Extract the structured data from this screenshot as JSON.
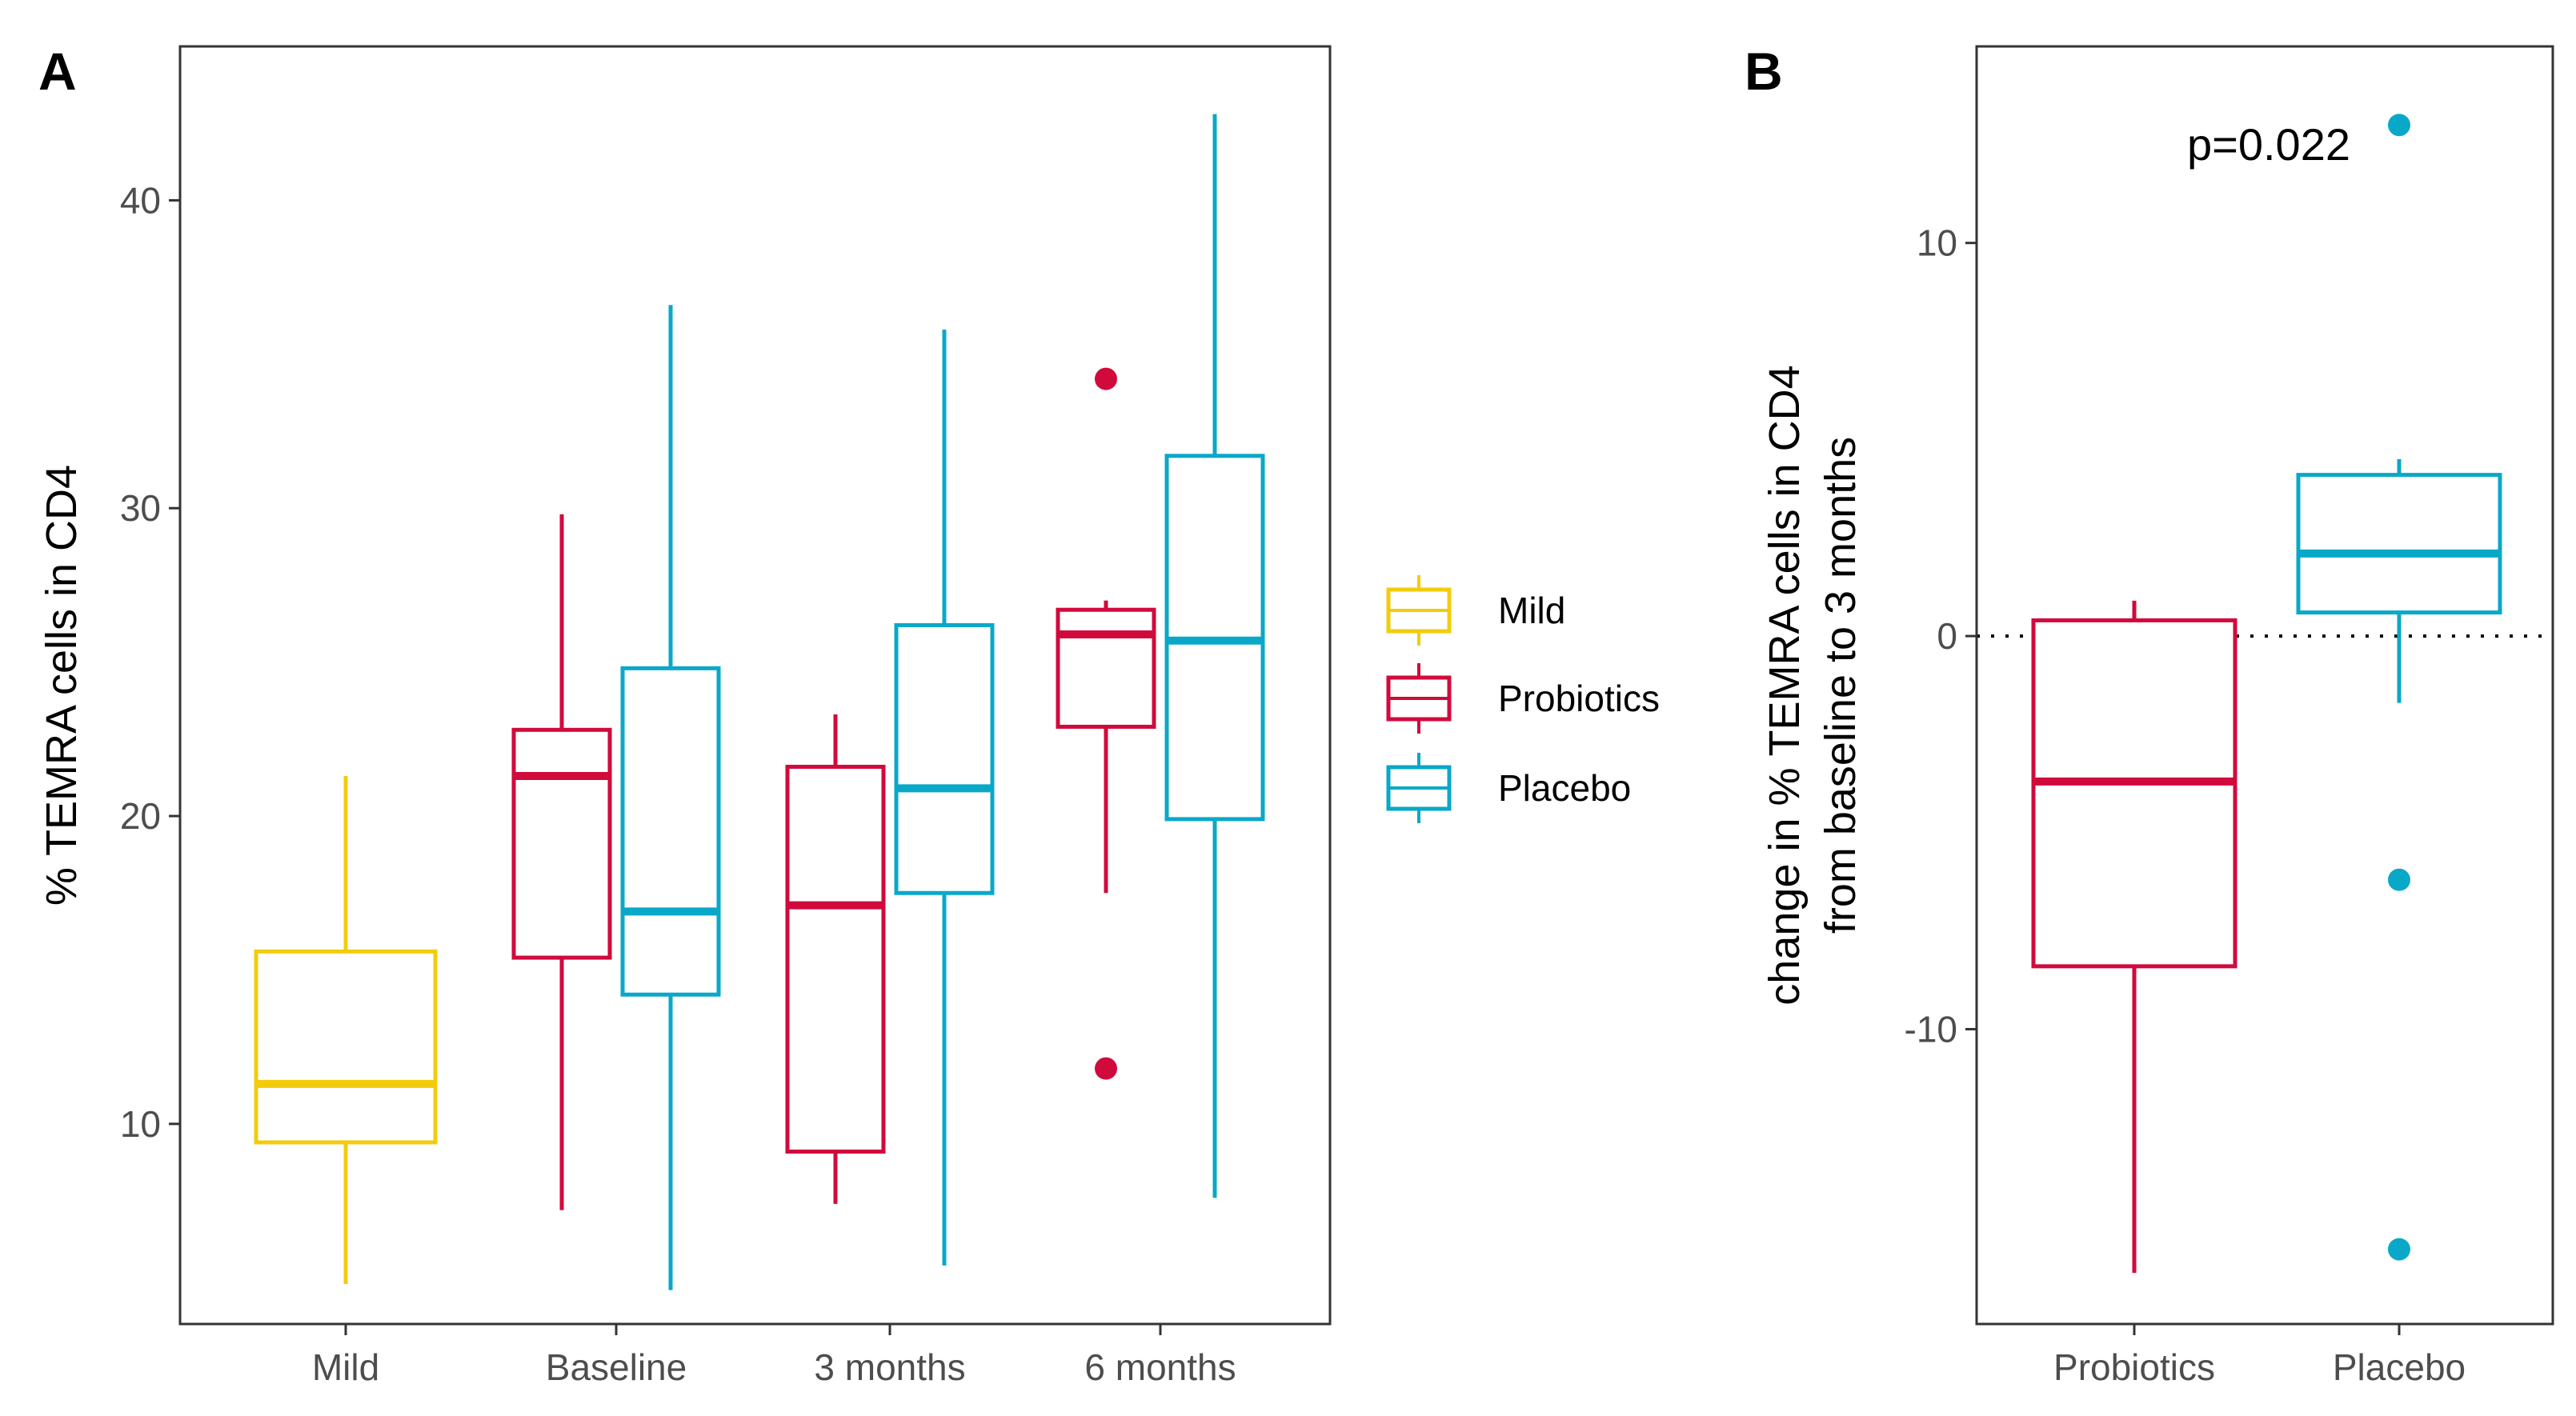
{
  "chart_data": [
    {
      "panel": "A",
      "type": "box",
      "ylabel": "% TEMRA cells in CD4",
      "xlabel": "",
      "ylim": [
        3.5,
        45
      ],
      "yticks": [
        10,
        20,
        30,
        40
      ],
      "categories": [
        "Mild",
        "Baseline",
        "3 months",
        "6 months"
      ],
      "grid": false,
      "boxes": [
        {
          "category": "Mild",
          "group": "Mild",
          "whisker_low": 4.8,
          "q1": 9.4,
          "median": 11.3,
          "q3": 15.6,
          "whisker_high": 21.3,
          "outliers": []
        },
        {
          "category": "Baseline",
          "group": "Probiotics",
          "whisker_low": 7.2,
          "q1": 15.4,
          "median": 21.3,
          "q3": 22.8,
          "whisker_high": 29.8,
          "outliers": []
        },
        {
          "category": "Baseline",
          "group": "Placebo",
          "whisker_low": 4.6,
          "q1": 14.2,
          "median": 16.9,
          "q3": 24.8,
          "whisker_high": 36.6,
          "outliers": []
        },
        {
          "category": "3 months",
          "group": "Probiotics",
          "whisker_low": 7.4,
          "q1": 9.1,
          "median": 17.1,
          "q3": 21.6,
          "whisker_high": 23.3,
          "outliers": []
        },
        {
          "category": "3 months",
          "group": "Placebo",
          "whisker_low": 5.4,
          "q1": 17.5,
          "median": 20.9,
          "q3": 26.2,
          "whisker_high": 35.8,
          "outliers": []
        },
        {
          "category": "6 months",
          "group": "Probiotics",
          "whisker_low": 17.5,
          "q1": 22.9,
          "median": 25.9,
          "q3": 26.7,
          "whisker_high": 27.0,
          "outliers": [
            34.2,
            11.8
          ]
        },
        {
          "category": "6 months",
          "group": "Placebo",
          "whisker_low": 7.6,
          "q1": 19.9,
          "median": 25.7,
          "q3": 31.7,
          "whisker_high": 42.8,
          "outliers": []
        }
      ]
    },
    {
      "panel": "B",
      "type": "box",
      "ylabel": [
        "change  in % TEMRA cells in CD4",
        "from baseline to 3 months"
      ],
      "xlabel": "",
      "ylim": [
        -17.5,
        15.0
      ],
      "yticks": [
        -10,
        0,
        10
      ],
      "categories": [
        "Probiotics",
        "Placebo"
      ],
      "grid": false,
      "reference_line": 0,
      "annotation": "p=0.022",
      "boxes": [
        {
          "category": "Probiotics",
          "group": "Probiotics",
          "whisker_low": -16.2,
          "q1": -8.4,
          "median": -3.7,
          "q3": 0.4,
          "whisker_high": 0.9,
          "outliers": []
        },
        {
          "category": "Placebo",
          "group": "Placebo",
          "whisker_low": -1.7,
          "q1": 0.6,
          "median": 2.1,
          "q3": 4.1,
          "whisker_high": 4.5,
          "outliers": [
            13.0,
            -6.2,
            -15.6
          ]
        }
      ]
    }
  ],
  "legend": {
    "placement": "right",
    "items": [
      {
        "label": "Mild",
        "color": "#f2cc0c"
      },
      {
        "label": "Probiotics",
        "color": "#d10a3c"
      },
      {
        "label": "Placebo",
        "color": "#0aa8c8"
      }
    ]
  },
  "colors": {
    "Mild": "#f2cc0c",
    "Probiotics": "#d10a3c",
    "Placebo": "#0aa8c8"
  }
}
